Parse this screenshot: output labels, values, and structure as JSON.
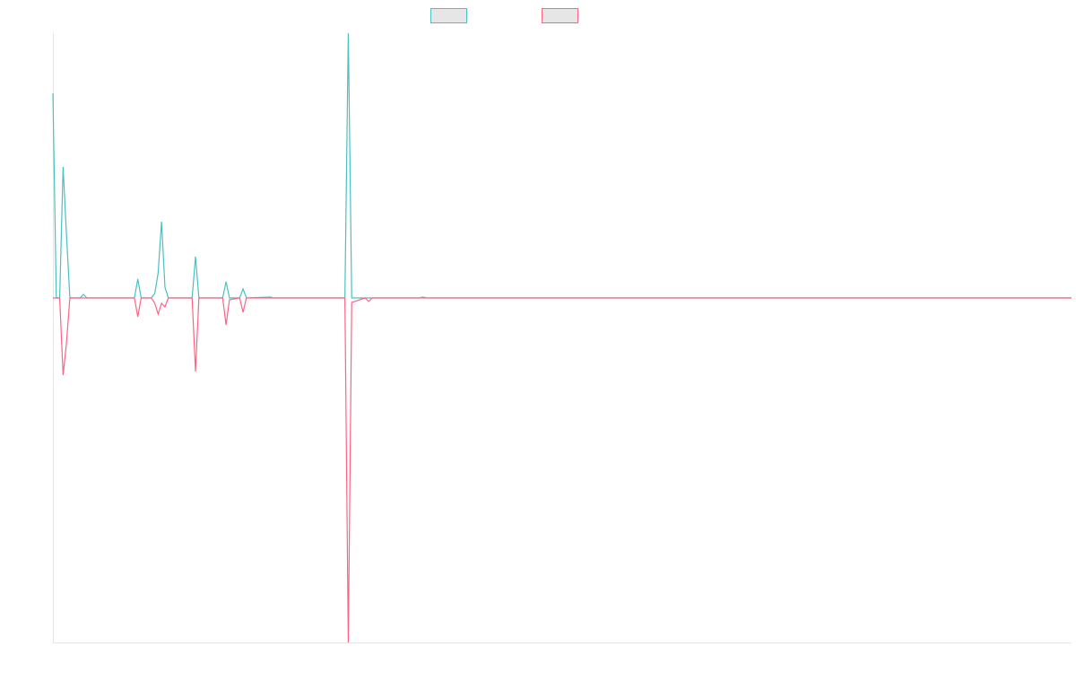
{
  "chart_data": {
    "type": "line",
    "x": [
      0,
      1,
      2,
      3,
      4,
      5,
      8,
      9,
      10,
      24,
      25,
      26,
      29,
      30,
      31,
      32,
      33,
      34,
      41,
      42,
      43,
      50,
      51,
      52,
      55,
      56,
      57,
      64,
      65,
      86,
      87,
      88,
      92,
      93,
      94,
      108,
      109,
      110,
      300
    ],
    "xlim": [
      0,
      300
    ],
    "ylim": [
      -384,
      295
    ],
    "series": [
      {
        "color": "#4bc0c0",
        "values": [
          228,
          0,
          0,
          146,
          70,
          0,
          0,
          4,
          0,
          0,
          21,
          0,
          0,
          5,
          28,
          85,
          12,
          0,
          0,
          46,
          0,
          0,
          18,
          0,
          0,
          10,
          0,
          1,
          0,
          0,
          295,
          0,
          0,
          0,
          0,
          0,
          1,
          0,
          0
        ]
      },
      {
        "color": "#ff6384",
        "values": [
          0,
          0,
          0,
          -86,
          -50,
          0,
          0,
          0,
          0,
          0,
          -21,
          0,
          0,
          -6,
          -18,
          -6,
          -10,
          0,
          0,
          -82,
          0,
          0,
          -30,
          -2,
          0,
          -16,
          0,
          0,
          0,
          0,
          -384,
          -5,
          0,
          -4,
          0,
          0,
          0,
          0,
          0
        ]
      }
    ]
  }
}
